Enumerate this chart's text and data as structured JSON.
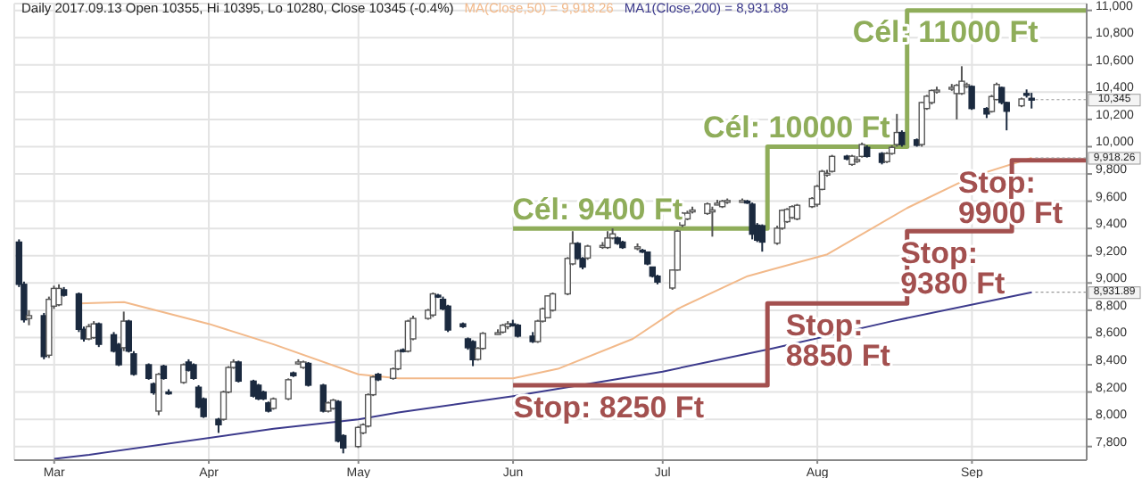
{
  "chart_data": {
    "type": "candlestick",
    "title": "Daily 2017.09.13  Open 10355, Hi 10395, Lo 10280, Close 10345 (-0.4%)",
    "colors": [
      "#1b2a3f",
      "#1b2a3f",
      "#ffffff",
      "#1b2a3f",
      "#ffffff",
      "#ffffff",
      "#ffffff",
      "#1b2a3f",
      "#1b2a3f",
      "#1b2a3f",
      "#ffffff",
      "#ffffff",
      "#1b2a3f",
      "#1b2a3f",
      "#1b2a3f",
      "#ffffff",
      "#1b2a3f",
      "#1b2a3f",
      "#1b2a3f",
      "#1b2a3f",
      "#ffffff",
      "#1b2a3f",
      "#1b2a3f",
      "#ffffff",
      "#1b2a3f",
      "#1b2a3f",
      "#1b2a3f",
      "#1b2a3f",
      "#1b2a3f",
      "#ffffff",
      "#ffffff",
      "#ffffff",
      "#1b2a3f",
      "#1b2a3f",
      "#1b2a3f",
      "#1b2a3f",
      "#1b2a3f",
      "#ffffff",
      "#ffffff",
      "#1b2a3f",
      "#ffffff",
      "#ffffff",
      "#1b2a3f",
      "#1b2a3f",
      "#ffffff",
      "#ffffff",
      "#1b2a3f",
      "#1b2a3f",
      "#ffffff",
      "#ffffff",
      "#ffffff",
      "#ffffff",
      "#1b2a3f",
      "#ffffff",
      "#ffffff",
      "#1b2a3f",
      "#ffffff",
      "#ffffff",
      "#ffffff",
      "#ffffff",
      "#1b2a3f",
      "#1b2a3f",
      "#1b2a3f",
      "#1b2a3f",
      "#1b2a3f",
      "#1b2a3f",
      "#ffffff",
      "#ffffff",
      "#ffffff",
      "#ffffff",
      "#ffffff",
      "#1b2a3f",
      "#1b2a3f",
      "#1b2a3f",
      "#ffffff",
      "#ffffff",
      "#ffffff",
      "#ffffff",
      "#ffffff",
      "#ffffff",
      "#1b2a3f",
      "#1b2a3f",
      "#ffffff",
      "#ffffff",
      "#ffffff",
      "#ffffff",
      "#1b2a3f",
      "#1b2a3f",
      "#ffffff",
      "#1b2a3f",
      "#1b2a3f",
      "#1b2a3f",
      "#1b2a3f",
      "#ffffff",
      "#ffffff",
      "#ffffff",
      "#ffffff",
      "#ffffff",
      "#ffffff",
      "#ffffff",
      "#ffffff",
      "#ffffff",
      "#ffffff",
      "#ffffff",
      "#1b2a3f",
      "#1b2a3f",
      "#1b2a3f",
      "#1b2a3f",
      "#ffffff",
      "#ffffff",
      "#ffffff",
      "#ffffff",
      "#ffffff",
      "#ffffff",
      "#ffffff",
      "#ffffff",
      "#ffffff",
      "#ffffff",
      "#1b2a3f",
      "#ffffff",
      "#ffffff",
      "#ffffff",
      "#1b2a3f",
      "#1b2a3f",
      "#ffffff",
      "#ffffff",
      "#ffffff",
      "#1b2a3f",
      "#1b2a3f",
      "#ffffff",
      "#ffffff",
      "#ffffff",
      "#ffffff",
      "#ffffff",
      "#ffffff",
      "#ffffff",
      "#ffffff",
      "#1b2a3f",
      "#1b2a3f",
      "#ffffff",
      "#ffffff",
      "#1b2a3f",
      "#1b2a3f",
      "#ffffff",
      "#1b2a3f",
      "#1b2a3f"
    ],
    "x": [
      "2017-02-22",
      "2017-02-23",
      "2017-02-24",
      "2017-02-27",
      "2017-02-28",
      "2017-03-01",
      "2017-03-02",
      "2017-03-03",
      "2017-03-06",
      "2017-03-07",
      "2017-03-08",
      "2017-03-09",
      "2017-03-10",
      "2017-03-13",
      "2017-03-14",
      "2017-03-15",
      "2017-03-16",
      "2017-03-17",
      "2017-03-20",
      "2017-03-21",
      "2017-03-22",
      "2017-03-23",
      "2017-03-24",
      "2017-03-27",
      "2017-03-28",
      "2017-03-29",
      "2017-03-30",
      "2017-03-31",
      "2017-04-03",
      "2017-04-04",
      "2017-04-05",
      "2017-04-06",
      "2017-04-07",
      "2017-04-10",
      "2017-04-11",
      "2017-04-12",
      "2017-04-13",
      "2017-04-14",
      "2017-04-17",
      "2017-04-18",
      "2017-04-19",
      "2017-04-20",
      "2017-04-21",
      "2017-04-24",
      "2017-04-25",
      "2017-04-26",
      "2017-04-27",
      "2017-04-28",
      "2017-05-01",
      "2017-05-02",
      "2017-05-03",
      "2017-05-04",
      "2017-05-05",
      "2017-05-08",
      "2017-05-09",
      "2017-05-10",
      "2017-05-11",
      "2017-05-12",
      "2017-05-15",
      "2017-05-16",
      "2017-05-17",
      "2017-05-18",
      "2017-05-19",
      "2017-05-22",
      "2017-05-23",
      "2017-05-24",
      "2017-05-25",
      "2017-05-26",
      "2017-05-29",
      "2017-05-30",
      "2017-05-31",
      "2017-06-01",
      "2017-06-02",
      "2017-06-05",
      "2017-06-06",
      "2017-06-07",
      "2017-06-08",
      "2017-06-09",
      "2017-06-12",
      "2017-06-13",
      "2017-06-14",
      "2017-06-15",
      "2017-06-16",
      "2017-06-19",
      "2017-06-20",
      "2017-06-21",
      "2017-06-22",
      "2017-06-23",
      "2017-06-26",
      "2017-06-27",
      "2017-06-28",
      "2017-06-29",
      "2017-06-30",
      "2017-07-03",
      "2017-07-04",
      "2017-07-05",
      "2017-07-06",
      "2017-07-07",
      "2017-07-10",
      "2017-07-11",
      "2017-07-12",
      "2017-07-13",
      "2017-07-14",
      "2017-07-17",
      "2017-07-18",
      "2017-07-19",
      "2017-07-20",
      "2017-07-21",
      "2017-07-24",
      "2017-07-25",
      "2017-07-26",
      "2017-07-27",
      "2017-07-28",
      "2017-07-31",
      "2017-08-01",
      "2017-08-02",
      "2017-08-03",
      "2017-08-04",
      "2017-08-07",
      "2017-08-08",
      "2017-08-09",
      "2017-08-10",
      "2017-08-11",
      "2017-08-14",
      "2017-08-15",
      "2017-08-16",
      "2017-08-17",
      "2017-08-18",
      "2017-08-21",
      "2017-08-22",
      "2017-08-23",
      "2017-08-24",
      "2017-08-25",
      "2017-08-28",
      "2017-08-29",
      "2017-08-30",
      "2017-08-31",
      "2017-09-01",
      "2017-09-04",
      "2017-09-05",
      "2017-09-06",
      "2017-09-07",
      "2017-09-08",
      "2017-09-11",
      "2017-09-12",
      "2017-09-13"
    ],
    "ohlc": [
      [
        9300,
        9320,
        8970,
        8990
      ],
      [
        8990,
        9010,
        8710,
        8730
      ],
      [
        8740,
        8800,
        8690,
        8760
      ],
      [
        8760,
        8780,
        8440,
        8460
      ],
      [
        8470,
        8900,
        8450,
        8880
      ],
      [
        8830,
        8980,
        8810,
        8960
      ],
      [
        8840,
        8990,
        8830,
        8960
      ],
      [
        8950,
        8970,
        8900,
        8910
      ],
      [
        8920,
        8930,
        8640,
        8660
      ],
      [
        8660,
        8680,
        8570,
        8590
      ],
      [
        8590,
        8700,
        8580,
        8680
      ],
      [
        8600,
        8720,
        8590,
        8700
      ],
      [
        8700,
        8710,
        8530,
        8550
      ],
      [
        8620,
        8640,
        8490,
        8500
      ],
      [
        8550,
        8560,
        8390,
        8400
      ],
      [
        8525,
        8790,
        8500,
        8720
      ],
      [
        8720,
        8730,
        8490,
        8500
      ],
      [
        8480,
        8500,
        8320,
        8330
      ],
      [
        8400,
        8410,
        8290,
        8300
      ],
      [
        8260,
        8270,
        8180,
        8195
      ],
      [
        8060,
        8340,
        8030,
        8330
      ],
      [
        8390,
        8400,
        8290,
        8300
      ],
      [
        8200,
        8220,
        8180,
        8190
      ],
      [
        8270,
        8410,
        8260,
        8400
      ],
      [
        8420,
        8440,
        8350,
        8360
      ],
      [
        8400,
        8410,
        8290,
        8300
      ],
      [
        8235,
        8250,
        8080,
        8090
      ],
      [
        8150,
        8160,
        8010,
        8020
      ],
      [
        8000,
        8010,
        7900,
        7960
      ],
      [
        8000,
        8210,
        7990,
        8200
      ],
      [
        8200,
        8390,
        8190,
        8380
      ],
      [
        8380,
        8440,
        8370,
        8420
      ],
      [
        8420,
        8430,
        8270,
        8280
      ],
      [
        8280,
        8290,
        8160,
        8170
      ],
      [
        8250,
        8260,
        8140,
        8150
      ],
      [
        8200,
        8210,
        8140,
        8150
      ],
      [
        8120,
        8130,
        8050,
        8060
      ],
      [
        8080,
        8160,
        8070,
        8150
      ],
      [
        8150,
        8300,
        8140,
        8290
      ],
      [
        8340,
        8350,
        8310,
        8320
      ],
      [
        8410,
        8440,
        8400,
        8420
      ],
      [
        8380,
        8430,
        8370,
        8420
      ],
      [
        8410,
        8420,
        8240,
        8250
      ],
      [
        8250,
        8260,
        8050,
        8060
      ],
      [
        8060,
        8130,
        8050,
        8120
      ],
      [
        8080,
        8150,
        8070,
        8140
      ],
      [
        8130,
        8140,
        7830,
        7840
      ],
      [
        7880,
        7890,
        7750,
        7790
      ],
      [
        7800,
        7950,
        7790,
        7940
      ],
      [
        7900,
        7970,
        7890,
        7960
      ],
      [
        7950,
        8190,
        7940,
        8180
      ],
      [
        8180,
        8320,
        8170,
        8310
      ],
      [
        8330,
        8340,
        8280,
        8290
      ],
      [
        8300,
        8380,
        8290,
        8370
      ],
      [
        8370,
        8510,
        8360,
        8500
      ],
      [
        8510,
        8520,
        8490,
        8500
      ],
      [
        8500,
        8730,
        8490,
        8720
      ],
      [
        8590,
        8760,
        8580,
        8740
      ],
      [
        8740,
        8810,
        8730,
        8800
      ],
      [
        8765,
        8930,
        8750,
        8920
      ],
      [
        8910,
        8920,
        8890,
        8900
      ],
      [
        8880,
        8900,
        8800,
        8810
      ],
      [
        8830,
        8840,
        8640,
        8655
      ],
      [
        8700,
        8710,
        8670,
        8680
      ],
      [
        8590,
        8600,
        8510,
        8525
      ],
      [
        8570,
        8580,
        8390,
        8437
      ],
      [
        8440,
        8530,
        8430,
        8520
      ],
      [
        8520,
        8640,
        8510,
        8630
      ],
      [
        8630,
        8660,
        8620,
        8635
      ],
      [
        8640,
        8700,
        8630,
        8690
      ],
      [
        8680,
        8720,
        8660,
        8700
      ],
      [
        8700,
        8730,
        8680,
        8690
      ],
      [
        8690,
        8700,
        8600,
        8610
      ],
      [
        8610,
        8640,
        8560,
        8570
      ],
      [
        8570,
        8730,
        8560,
        8720
      ],
      [
        8720,
        8820,
        8710,
        8810
      ],
      [
        8745,
        8910,
        8740,
        8905
      ],
      [
        8800,
        8930,
        8790,
        8920
      ],
      [
        8920,
        9190,
        8910,
        9180
      ],
      [
        9140,
        9380,
        9130,
        9290
      ],
      [
        9290,
        9300,
        9170,
        9180
      ],
      [
        9180,
        9190,
        9100,
        9117
      ],
      [
        9183,
        9280,
        9170,
        9270
      ],
      [
        9270,
        9300,
        9250,
        9275
      ],
      [
        9260,
        9380,
        9250,
        9330
      ],
      [
        9330,
        9400,
        9320,
        9360
      ],
      [
        9330,
        9340,
        9280,
        9290
      ],
      [
        9300,
        9310,
        9250,
        9260
      ],
      [
        9260,
        9290,
        9240,
        9265
      ],
      [
        9240,
        9250,
        9220,
        9230
      ],
      [
        9227,
        9230,
        9130,
        9140
      ],
      [
        9117,
        9120,
        9040,
        9050
      ],
      [
        9050,
        9060,
        8990,
        9007
      ],
      [
        8963,
        9100,
        8950,
        9095
      ],
      [
        9095,
        9390,
        9090,
        9380
      ],
      [
        9424,
        9520,
        9410,
        9512
      ],
      [
        9470,
        9530,
        9460,
        9512
      ],
      [
        9530,
        9560,
        9510,
        9535
      ],
      [
        9510,
        9590,
        9500,
        9580
      ],
      [
        9530,
        9560,
        9340,
        9535
      ],
      [
        9580,
        9610,
        9570,
        9585
      ],
      [
        9560,
        9610,
        9550,
        9600
      ],
      [
        9600,
        9620,
        9580,
        9605
      ],
      [
        9600,
        9620,
        9590,
        9605
      ],
      [
        9600,
        9610,
        9580,
        9590
      ],
      [
        9578,
        9590,
        9320,
        9358
      ],
      [
        9424,
        9440,
        9300,
        9314
      ],
      [
        9420,
        9430,
        9230,
        9300
      ],
      [
        9292,
        9420,
        9280,
        9402
      ],
      [
        9402,
        9540,
        9390,
        9533
      ],
      [
        9450,
        9550,
        9440,
        9540
      ],
      [
        9480,
        9570,
        9470,
        9560
      ],
      [
        9470,
        9580,
        9460,
        9570
      ],
      [
        9560,
        9630,
        9550,
        9620
      ],
      [
        9577,
        9720,
        9560,
        9709
      ],
      [
        9687,
        9830,
        9680,
        9819
      ],
      [
        9800,
        9830,
        9780,
        9805
      ],
      [
        9819,
        9940,
        9810,
        9929
      ],
      [
        9930,
        9940,
        9900,
        9910
      ],
      [
        9870,
        9940,
        9860,
        9930
      ],
      [
        9900,
        9930,
        9880,
        9905
      ],
      [
        9929,
        10030,
        9920,
        10016
      ],
      [
        9995,
        10010,
        9920,
        9929
      ],
      [
        9950,
        9960,
        9870,
        9885
      ],
      [
        9890,
        9960,
        9880,
        9950
      ],
      [
        9950,
        10010,
        9940,
        9995
      ],
      [
        10016,
        10240,
        10000,
        10104
      ],
      [
        10104,
        10120,
        10000,
        10016
      ],
      [
        10050,
        10060,
        10000,
        10010
      ],
      [
        10016,
        10330,
        10000,
        10324
      ],
      [
        10280,
        10380,
        10270,
        10370
      ],
      [
        10324,
        10420,
        10310,
        10412
      ],
      [
        10410,
        10440,
        10390,
        10415
      ],
      [
        10430,
        10460,
        10410,
        10435
      ],
      [
        10390,
        10460,
        10200,
        10450
      ],
      [
        10390,
        10590,
        10380,
        10480
      ],
      [
        10450,
        10470,
        10430,
        10455
      ],
      [
        10442,
        10450,
        10270,
        10280
      ],
      [
        10280,
        10290,
        10210,
        10240
      ],
      [
        10258,
        10380,
        10250,
        10368
      ],
      [
        10346,
        10470,
        10340,
        10456
      ],
      [
        10434,
        10440,
        10310,
        10324
      ],
      [
        10324,
        10330,
        10120,
        10260
      ],
      [
        10300,
        10360,
        10290,
        10350
      ],
      [
        10390,
        10420,
        10360,
        10385
      ],
      [
        10355,
        10395,
        10280,
        10345
      ]
    ],
    "series": [
      {
        "type": "line",
        "name": "MA(Close,50) = 9,918.26",
        "color": "#f2b98a",
        "x": [
          "2017-03-06",
          "2017-03-15",
          "2017-04-01",
          "2017-04-14",
          "2017-05-01",
          "2017-05-09",
          "2017-06-01",
          "2017-06-10",
          "2017-06-25",
          "2017-07-04",
          "2017-07-18",
          "2017-07-23",
          "2017-08-03",
          "2017-08-19",
          "2017-09-01",
          "2017-09-13"
        ],
        "values": [
          8850,
          8860,
          8700,
          8550,
          8330,
          8300,
          8300,
          8370,
          8590,
          8810,
          9050,
          9100,
          9210,
          9550,
          9780,
          9918
        ]
      },
      {
        "type": "line",
        "name": "MA1(Close,200) = 8,931.89",
        "color": "#3c3a8c",
        "x": [
          "2017-03-01",
          "2017-03-08",
          "2017-04-14",
          "2017-05-01",
          "2017-05-09",
          "2017-06-01",
          "2017-07-01",
          "2017-07-23",
          "2017-08-16",
          "2017-09-13"
        ],
        "values": [
          7710,
          7740,
          7930,
          8000,
          8050,
          8170,
          8350,
          8520,
          8720,
          8932
        ]
      },
      {
        "type": "step",
        "color": "#8fad5a",
        "x": [
          "2017-06-01",
          "2017-07-22",
          "2017-08-19",
          "2017-09-24"
        ],
        "values": [
          9400,
          10000,
          11000,
          11000
        ]
      },
      {
        "type": "step",
        "color": "#a3504f",
        "x": [
          "2017-06-01",
          "2017-07-22",
          "2017-08-19",
          "2017-09-09",
          "2017-09-24"
        ],
        "values": [
          8250,
          8850,
          9380,
          9900,
          9900
        ]
      }
    ],
    "annotations": [
      {
        "text": "Cél: 9400 Ft",
        "x": "2017-06-22",
        "y": 9400
      },
      {
        "text": "Cél: 10000 Ft",
        "x": "2017-08-01",
        "y": 10000
      },
      {
        "text": "Cél: 11000 Ft",
        "x": "2017-09-08",
        "y": 11000
      },
      {
        "text": "Stop: 8250 Ft",
        "x": "2017-06-24",
        "y": 8250
      },
      {
        "text": "Stop:\n8850 Ft",
        "x": "2017-08-07",
        "y": 8850
      },
      {
        "text": "Stop:\n9380 Ft",
        "x": "2017-08-30",
        "y": 9380
      },
      {
        "text": "Stop:\n9900 Ft",
        "x": "2017-09-20",
        "y": 9900
      },
      {
        "text": "10,345",
        "x": "2017-09-13",
        "y": 10345
      },
      {
        "text": "9,918.26",
        "x": "2017-09-13",
        "y": 9918
      },
      {
        "text": "8,931.89",
        "x": "2017-09-13",
        "y": 8932
      }
    ],
    "xlim": [
      "2017-02-21",
      "2017-09-24"
    ],
    "xticks": [
      {
        "value": "2017-03-01",
        "label": "Mar"
      },
      {
        "value": "2017-04-01",
        "label": "Apr"
      },
      {
        "value": "2017-05-01",
        "label": "May"
      },
      {
        "value": "2017-06-01",
        "label": "Jun"
      },
      {
        "value": "2017-07-01",
        "label": "Jul"
      },
      {
        "value": "2017-08-01",
        "label": "Aug"
      },
      {
        "value": "2017-09-01",
        "label": "Sep"
      }
    ],
    "ylim": [
      7700,
      11050
    ],
    "yticks": [
      {
        "value": 7800,
        "label": "7,800"
      },
      {
        "value": 8000,
        "label": "8,000"
      },
      {
        "value": 8200,
        "label": "8,200"
      },
      {
        "value": 8400,
        "label": "8,400"
      },
      {
        "value": 8600,
        "label": "8,600"
      },
      {
        "value": 8800,
        "label": "8,800"
      },
      {
        "value": 9000,
        "label": "9,000"
      },
      {
        "value": 9200,
        "label": "9,200"
      },
      {
        "value": 9400,
        "label": "9,400"
      },
      {
        "value": 9600,
        "label": "9,600"
      },
      {
        "value": 9800,
        "label": "9,800"
      },
      {
        "value": 10000,
        "label": "10,000"
      },
      {
        "value": 10200,
        "label": "10,200"
      },
      {
        "value": 10400,
        "label": "10,400"
      },
      {
        "value": 10600,
        "label": "10,600"
      },
      {
        "value": 10800,
        "label": "10,800"
      },
      {
        "value": 11000,
        "label": "11,000"
      }
    ],
    "grid": true,
    "legend": "top",
    "marker": "none"
  }
}
